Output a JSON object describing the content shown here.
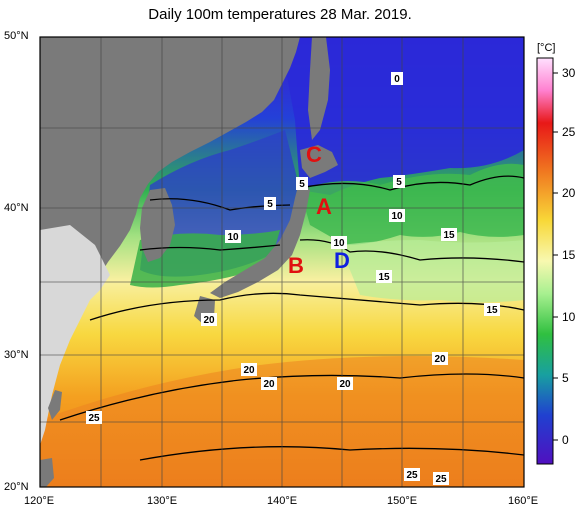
{
  "title": "Daily 100m temperatures 28 Mar. 2019.",
  "lat_labels": [
    "50°N",
    "40°N",
    "30°N",
    "20°N"
  ],
  "lon_labels": [
    "120°E",
    "130°E",
    "140°E",
    "150°E",
    "160°E"
  ],
  "colorbar": {
    "unit": "[°C]",
    "ticks": [
      "30",
      "25",
      "20",
      "15",
      "10",
      "5",
      "0"
    ]
  },
  "markers": [
    {
      "label": "A",
      "color": "#e01010"
    },
    {
      "label": "B",
      "color": "#e01010"
    },
    {
      "label": "C",
      "color": "#e01010"
    },
    {
      "label": "D",
      "color": "#1020e0"
    }
  ],
  "contour_labels": [
    "0",
    "5",
    "5",
    "5",
    "10",
    "10",
    "10",
    "15",
    "15",
    "15",
    "20",
    "20",
    "20",
    "20",
    "20",
    "25",
    "25",
    "25"
  ]
}
